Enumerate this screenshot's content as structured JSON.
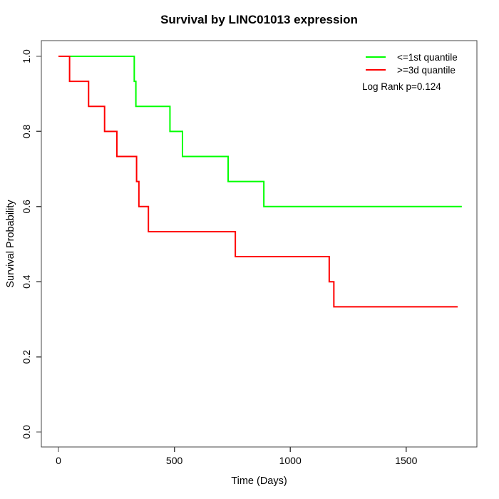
{
  "title": "Survival by LINC01013 expression",
  "chart_data": {
    "type": "line",
    "subtype": "kaplan-meier-step",
    "title": "Survival by LINC01013 expression",
    "xlabel": "Time (Days)",
    "ylabel": "Survival Probability",
    "xlim": [
      0,
      1750
    ],
    "ylim": [
      0.0,
      1.0
    ],
    "xticks": [
      0,
      500,
      1000,
      1500
    ],
    "yticks": [
      "0.0",
      "0.2",
      "0.4",
      "0.6",
      "0.8",
      "1.0"
    ],
    "grid": false,
    "legend_position": "top-right",
    "annotation": "Log Rank p=0.124",
    "series": [
      {
        "name": "<=1st quantile",
        "color": "#00ff00",
        "points": [
          [
            0,
            1.0
          ],
          [
            327,
            0.9333
          ],
          [
            334,
            0.8667
          ],
          [
            481,
            0.8
          ],
          [
            535,
            0.7333
          ],
          [
            732,
            0.6667
          ],
          [
            886,
            0.6
          ],
          [
            1740,
            0.6
          ]
        ]
      },
      {
        "name": ">=3d quantile",
        "color": "#ff0000",
        "points": [
          [
            0,
            1.0
          ],
          [
            48,
            0.9333
          ],
          [
            130,
            0.8667
          ],
          [
            199,
            0.8
          ],
          [
            252,
            0.7333
          ],
          [
            337,
            0.6667
          ],
          [
            347,
            0.6
          ],
          [
            388,
            0.5333
          ],
          [
            763,
            0.4667
          ],
          [
            1168,
            0.4
          ],
          [
            1188,
            0.3333
          ],
          [
            1722,
            0.3333
          ]
        ]
      }
    ]
  },
  "legend": {
    "items": [
      {
        "label": "<=1st quantile",
        "color": "#00ff00",
        "swatch": "line-swatch-green"
      },
      {
        "label": ">=3d quantile",
        "color": "#ff0000",
        "swatch": "line-swatch-red"
      }
    ],
    "logrank_label": "Log Rank p=0.124"
  },
  "colors": {
    "group_low": "#00ff00",
    "group_high": "#ff0000",
    "axis": "#444444",
    "text": "#000000",
    "background": "#ffffff"
  }
}
